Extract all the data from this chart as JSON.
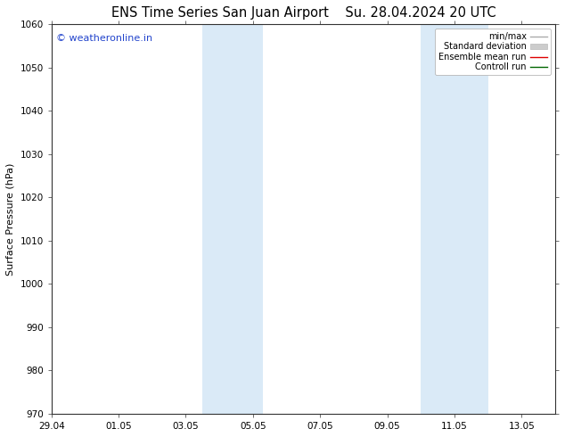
{
  "title_left": "ENS Time Series San Juan Airport",
  "title_right": "Su. 28.04.2024 20 UTC",
  "ylabel": "Surface Pressure (hPa)",
  "ylim": [
    970,
    1060
  ],
  "yticks": [
    970,
    980,
    990,
    1000,
    1010,
    1020,
    1030,
    1040,
    1050,
    1060
  ],
  "xlim": [
    0,
    15.0
  ],
  "xtick_labels": [
    "29.04",
    "01.05",
    "03.05",
    "05.05",
    "07.05",
    "09.05",
    "11.05",
    "13.05"
  ],
  "xtick_positions": [
    0,
    2,
    4,
    6,
    8,
    10,
    12,
    14
  ],
  "shaded_bands": [
    {
      "x_start": 4.5,
      "x_end": 6.3
    },
    {
      "x_start": 11.0,
      "x_end": 13.0
    }
  ],
  "shade_color": "#daeaf7",
  "watermark_text": "© weatheronline.in",
  "watermark_color": "#2244cc",
  "legend_items": [
    {
      "label": "min/max",
      "color": "#aaaaaa",
      "style": "line"
    },
    {
      "label": "Standard deviation",
      "color": "#cccccc",
      "style": "fill"
    },
    {
      "label": "Ensemble mean run",
      "color": "#dd0000",
      "style": "line"
    },
    {
      "label": "Controll run",
      "color": "#006600",
      "style": "line"
    }
  ],
  "bg_color": "#ffffff",
  "title_fontsize": 10.5,
  "tick_fontsize": 7.5,
  "label_fontsize": 8,
  "watermark_fontsize": 8
}
